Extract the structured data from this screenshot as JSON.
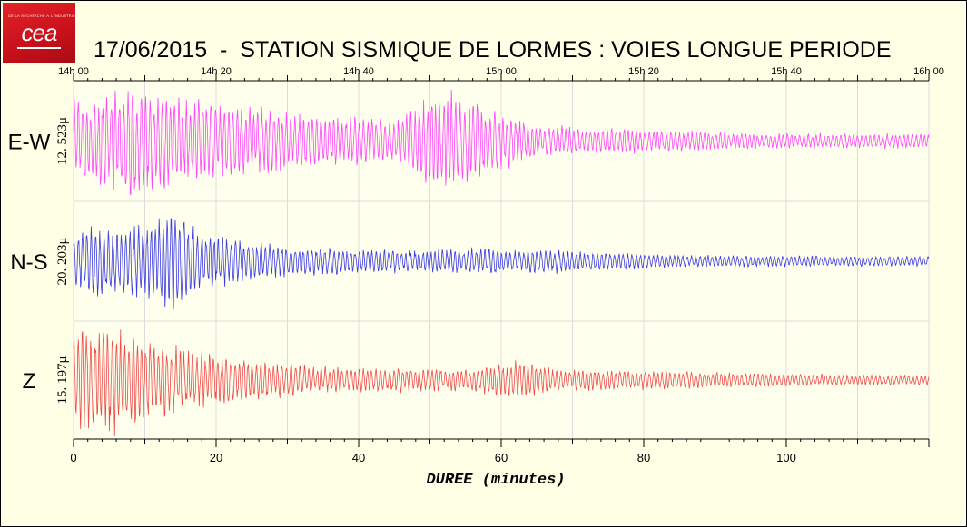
{
  "logo": {
    "text": "cea",
    "tagline": "DE LA RECHERCHE A L'INDUSTRIE"
  },
  "colors": {
    "background": "#ffffe6",
    "ew": "#ff44ff",
    "ns": "#3a3ae6",
    "z": "#ef4b4b",
    "grid": "#dcdcdc"
  },
  "chart_data": {
    "type": "line",
    "title": "17/06/2015  -  STATION SISMIQUE DE LORMES : VOIES LONGUE PERIODE",
    "xlabel": "DUREE (minutes)",
    "xlim": [
      0,
      120
    ],
    "x_ticks": [
      0,
      20,
      40,
      60,
      80,
      100
    ],
    "time_ticks": [
      "14h 00",
      "14h 20",
      "14h 40",
      "15h 00",
      "15h 20",
      "15h 40",
      "16h 00"
    ],
    "grid": true,
    "series": [
      {
        "name": "E-W",
        "amplitude_label": "12. 523μ",
        "color": "#ff44ff",
        "envelope": [
          [
            0,
            0.75
          ],
          [
            8,
            0.9
          ],
          [
            15,
            0.75
          ],
          [
            25,
            0.55
          ],
          [
            35,
            0.42
          ],
          [
            45,
            0.35
          ],
          [
            47,
            0.55
          ],
          [
            52,
            0.85
          ],
          [
            58,
            0.55
          ],
          [
            66,
            0.25
          ],
          [
            80,
            0.18
          ],
          [
            100,
            0.12
          ],
          [
            120,
            0.12
          ]
        ]
      },
      {
        "name": "N-S",
        "amplitude_label": "20. 203μ",
        "color": "#3a3ae6",
        "envelope": [
          [
            0,
            0.55
          ],
          [
            10,
            0.6
          ],
          [
            14,
            0.9
          ],
          [
            18,
            0.5
          ],
          [
            30,
            0.25
          ],
          [
            45,
            0.18
          ],
          [
            55,
            0.22
          ],
          [
            65,
            0.2
          ],
          [
            85,
            0.1
          ],
          [
            120,
            0.08
          ]
        ]
      },
      {
        "name": "Z",
        "amplitude_label": "15. 197μ",
        "color": "#ef4b4b",
        "envelope": [
          [
            0,
            0.85
          ],
          [
            5,
            0.95
          ],
          [
            12,
            0.6
          ],
          [
            22,
            0.4
          ],
          [
            35,
            0.22
          ],
          [
            55,
            0.18
          ],
          [
            63,
            0.35
          ],
          [
            68,
            0.18
          ],
          [
            80,
            0.16
          ],
          [
            100,
            0.1
          ],
          [
            120,
            0.08
          ]
        ]
      }
    ]
  }
}
